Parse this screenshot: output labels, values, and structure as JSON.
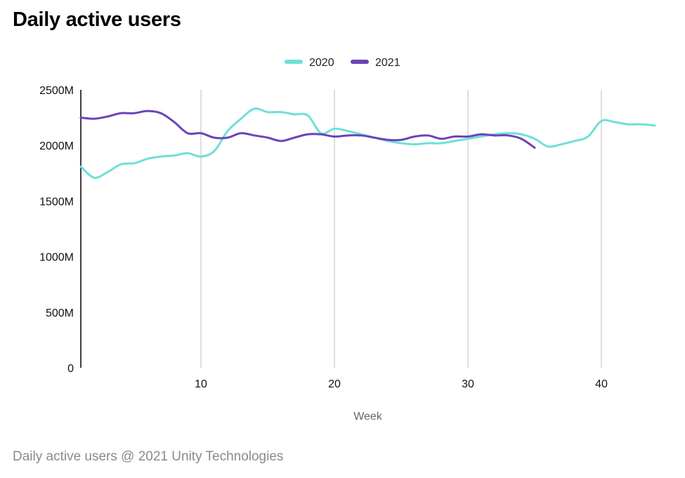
{
  "page": {
    "title": "Daily active users",
    "footer": "Daily active users @ 2021 Unity Technologies"
  },
  "chart_data": {
    "type": "line",
    "title": "Daily active users",
    "xlabel": "Week",
    "ylabel": "",
    "xlim": [
      1,
      44
    ],
    "ylim": [
      0,
      2500
    ],
    "x_ticks": [
      10,
      20,
      30,
      40
    ],
    "y_ticks": [
      0,
      500,
      1000,
      1500,
      2000,
      2500
    ],
    "y_tick_labels": [
      "0",
      "500M",
      "1000M",
      "1500M",
      "2000M",
      "2500M"
    ],
    "grid": "vertical",
    "legend_position": "top-center",
    "series": [
      {
        "name": "2020",
        "color": "#6ee0d8",
        "x": [
          1,
          2,
          3,
          4,
          5,
          6,
          7,
          8,
          9,
          10,
          11,
          12,
          13,
          14,
          15,
          16,
          17,
          18,
          19,
          20,
          21,
          22,
          23,
          24,
          25,
          26,
          27,
          28,
          29,
          30,
          31,
          32,
          33,
          34,
          35,
          36,
          37,
          38,
          39,
          40,
          41,
          42,
          43,
          44
        ],
        "values": [
          1810,
          1710,
          1760,
          1830,
          1840,
          1880,
          1900,
          1910,
          1930,
          1900,
          1950,
          2130,
          2240,
          2330,
          2300,
          2300,
          2280,
          2270,
          2110,
          2150,
          2130,
          2100,
          2070,
          2040,
          2020,
          2010,
          2020,
          2020,
          2040,
          2060,
          2080,
          2100,
          2110,
          2100,
          2060,
          1990,
          2010,
          2040,
          2080,
          2220,
          2210,
          2190,
          2190,
          2180
        ]
      },
      {
        "name": "2021",
        "color": "#6a44b8",
        "x": [
          1,
          2,
          3,
          4,
          5,
          6,
          7,
          8,
          9,
          10,
          11,
          12,
          13,
          14,
          15,
          16,
          17,
          18,
          19,
          20,
          21,
          22,
          23,
          24,
          25,
          26,
          27,
          28,
          29,
          30,
          31,
          32,
          33,
          34,
          35
        ],
        "values": [
          2250,
          2240,
          2260,
          2290,
          2290,
          2310,
          2290,
          2210,
          2110,
          2110,
          2070,
          2070,
          2110,
          2090,
          2070,
          2040,
          2070,
          2100,
          2100,
          2080,
          2090,
          2090,
          2070,
          2050,
          2050,
          2080,
          2090,
          2060,
          2080,
          2080,
          2100,
          2090,
          2090,
          2060,
          1980
        ]
      }
    ]
  }
}
